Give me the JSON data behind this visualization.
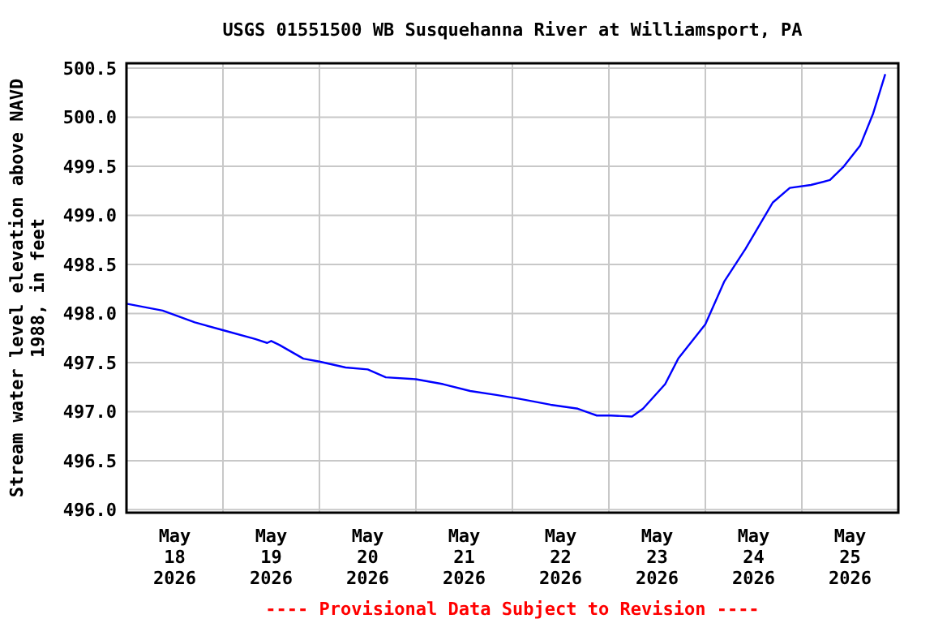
{
  "chart_data": {
    "type": "line",
    "title": "USGS 01551500 WB Susquehanna River at Williamsport, PA",
    "ylabel": "Stream water level elevation above NAVD\n1988, in feet",
    "annotations": [
      "---- Provisional Data Subject to Revision ----"
    ],
    "x": [
      "2026-05-18T00:00",
      "2026-05-18T09:00",
      "2026-05-18T17:00",
      "2026-05-19T00:00",
      "2026-05-19T08:00",
      "2026-05-19T11:00",
      "2026-05-19T12:00",
      "2026-05-19T14:00",
      "2026-05-19T20:00",
      "2026-05-20T00:00",
      "2026-05-20T06:30",
      "2026-05-20T12:00",
      "2026-05-20T16:30",
      "2026-05-21T00:00",
      "2026-05-21T06:45",
      "2026-05-21T13:30",
      "2026-05-21T20:00",
      "2026-05-22T01:45",
      "2026-05-22T09:30",
      "2026-05-22T16:15",
      "2026-05-22T21:00",
      "2026-05-23T00:30",
      "2026-05-23T05:45",
      "2026-05-23T08:30",
      "2026-05-23T14:00",
      "2026-05-23T17:15",
      "2026-05-24T00:00",
      "2026-05-24T04:45",
      "2026-05-24T10:00",
      "2026-05-24T16:45",
      "2026-05-24T21:00",
      "2026-05-25T02:15",
      "2026-05-25T07:00",
      "2026-05-25T10:15",
      "2026-05-25T14:30",
      "2026-05-25T17:45",
      "2026-05-25T20:45"
    ],
    "series": [
      {
        "color": "#0000ff",
        "values": [
          498.1,
          498.03,
          497.91,
          497.83,
          497.74,
          497.7,
          497.72,
          497.68,
          497.54,
          497.51,
          497.45,
          497.43,
          497.35,
          497.33,
          497.28,
          497.21,
          497.17,
          497.13,
          497.07,
          497.03,
          496.96,
          496.96,
          496.95,
          497.03,
          497.28,
          497.54,
          497.89,
          498.33,
          498.66,
          499.13,
          499.28,
          499.31,
          499.36,
          499.49,
          499.71,
          500.04,
          500.44
        ]
      }
    ],
    "xlim": [
      "2026-05-18T00:00",
      "2026-05-26T00:00"
    ],
    "xticks": [
      {
        "value": "2026-05-18T12:00",
        "label": "May\n18\n2026"
      },
      {
        "value": "2026-05-19T12:00",
        "label": "May\n19\n2026"
      },
      {
        "value": "2026-05-20T12:00",
        "label": "May\n20\n2026"
      },
      {
        "value": "2026-05-21T12:00",
        "label": "May\n21\n2026"
      },
      {
        "value": "2026-05-22T12:00",
        "label": "May\n22\n2026"
      },
      {
        "value": "2026-05-23T12:00",
        "label": "May\n23\n2026"
      },
      {
        "value": "2026-05-24T12:00",
        "label": "May\n24\n2026"
      },
      {
        "value": "2026-05-25T12:00",
        "label": "May\n25\n2026"
      },
      {
        "value": "2026-05-19T00:00",
        "label": null
      },
      {
        "value": "2026-05-20T00:00",
        "label": null
      },
      {
        "value": "2026-05-21T00:00",
        "label": null
      },
      {
        "value": "2026-05-22T00:00",
        "label": null
      },
      {
        "value": "2026-05-23T00:00",
        "label": null
      },
      {
        "value": "2026-05-24T00:00",
        "label": null
      },
      {
        "value": "2026-05-25T00:00",
        "label": null
      }
    ],
    "ylim": [
      495.97,
      500.55
    ],
    "yticks": [
      {
        "value": 496,
        "label": "496.0"
      },
      {
        "value": 496.5,
        "label": "496.5"
      },
      {
        "value": 497,
        "label": "497.0"
      },
      {
        "value": 497.5,
        "label": "497.5"
      },
      {
        "value": 498,
        "label": "498.0"
      },
      {
        "value": 498.5,
        "label": "498.5"
      },
      {
        "value": 499,
        "label": "499.0"
      },
      {
        "value": 499.5,
        "label": "499.5"
      },
      {
        "value": 500,
        "label": "500.0"
      },
      {
        "value": 500.5,
        "label": "500.5"
      }
    ],
    "grid": true,
    "line_style": "solid",
    "marker": "none"
  }
}
